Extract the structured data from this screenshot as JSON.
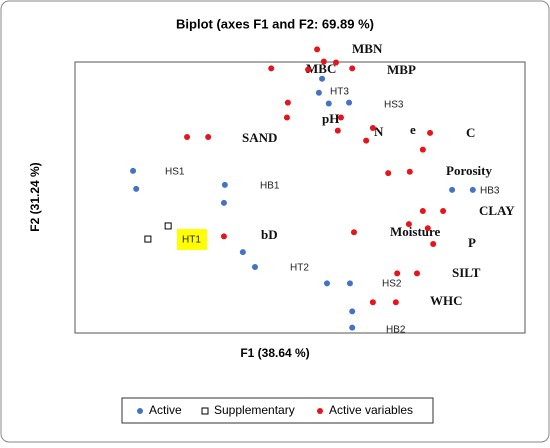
{
  "chart_data": {
    "type": "scatter",
    "title": "Biplot (axes F1 and F2: 69.89 %)",
    "x_label": "F1 (38.64 %)",
    "y_label": "F2 (31.24 %)",
    "xlim": [
      -5,
      5
    ],
    "ylim": [
      -3,
      3
    ],
    "series": [
      {
        "name": "Active",
        "color": "#4472c4",
        "marker": "circle",
        "x": [
          0.49,
          0.42,
          0.64,
          1.09,
          -3.71,
          -3.64,
          -1.67,
          -1.69,
          -1.27,
          -1.0,
          0.6,
          1.11,
          1.16,
          1.16,
          3.38,
          3.84
        ],
        "values": [
          2.63,
          2.32,
          2.08,
          2.1,
          0.59,
          0.19,
          0.28,
          -0.12,
          -1.21,
          -1.54,
          -1.9,
          -1.9,
          -2.52,
          -2.88,
          0.17,
          0.17
        ]
      },
      {
        "name": "Supplementary",
        "color": "#000000",
        "marker": "square",
        "x": [
          -2.93,
          -3.38
        ],
        "values": [
          -0.63,
          -0.92
        ]
      },
      {
        "name": "Active variables",
        "color": "#e8141c",
        "marker": "circle",
        "x": [
          0.38,
          0.53,
          0.8,
          1.16,
          -0.64,
          0.18,
          -0.27,
          -0.29,
          0.91,
          0.84,
          1.62,
          1.47,
          2.89,
          2.73,
          -2.51,
          -2.04,
          1.96,
          2.44,
          2.73,
          3.18,
          2.42,
          2.84,
          2.96,
          -1.69,
          1.2,
          2.16,
          2.6,
          1.62,
          2.13
        ],
        "values": [
          3.28,
          3.01,
          2.99,
          2.86,
          2.86,
          2.83,
          2.1,
          1.77,
          1.77,
          1.48,
          1.54,
          1.26,
          1.43,
          1.06,
          1.34,
          1.34,
          0.54,
          0.57,
          -0.3,
          -0.3,
          -0.59,
          -0.68,
          -1.03,
          -0.86,
          -0.77,
          -1.68,
          -1.68,
          -2.32,
          -2.32
        ]
      }
    ],
    "observation_labels": [
      "HT3",
      "HS3",
      "HS1",
      "HB1",
      "HT2",
      "HS2",
      "HB2",
      "HB3",
      "HT1"
    ],
    "variable_labels": [
      "MBN",
      "MBC",
      "MBP",
      "pH",
      "N",
      "e",
      "C",
      "SAND",
      "Porosity",
      "CLAY",
      "Moisture",
      "P",
      "bD",
      "SILT",
      "WHC"
    ]
  }
}
